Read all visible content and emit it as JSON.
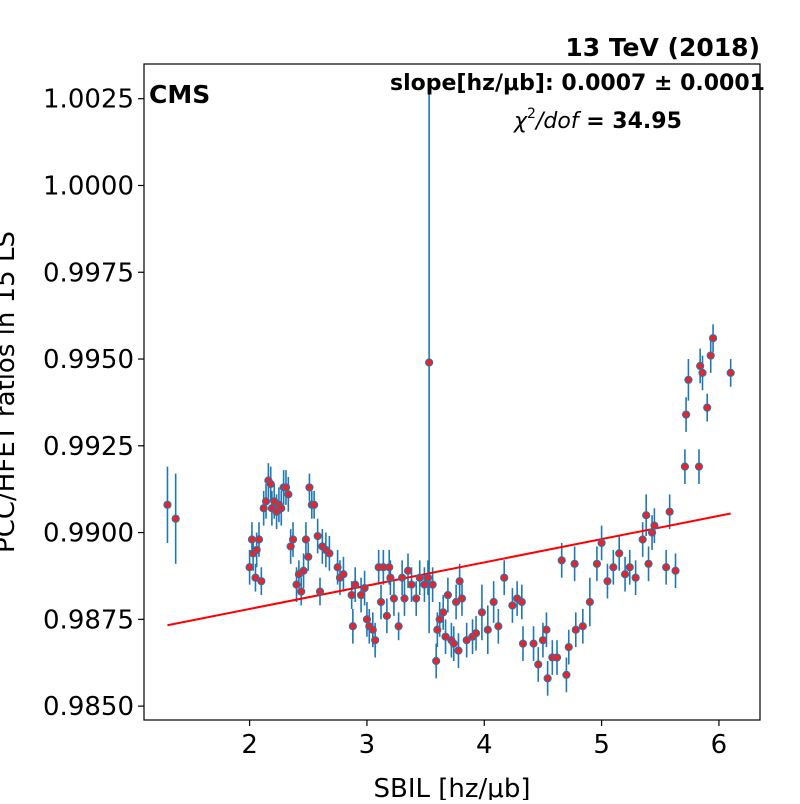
{
  "chart_data": {
    "type": "scatter",
    "title": "13 TeV (2018)",
    "experiment_label": "CMS",
    "xlabel": "SBIL [hz/μb]",
    "ylabel": "PCC/HFET ratios in 15 LS",
    "xlim": [
      1.1,
      6.35
    ],
    "ylim": [
      0.9846,
      1.0035
    ],
    "x_ticks": [
      2,
      3,
      4,
      5,
      6
    ],
    "y_ticks": [
      0.985,
      0.9875,
      0.99,
      0.9925,
      0.995,
      0.9975,
      1.0,
      1.0025
    ],
    "x_tick_labels": [
      "2",
      "3",
      "4",
      "5",
      "6"
    ],
    "y_tick_labels": [
      "0.9850",
      "0.9875",
      "0.9900",
      "0.9925",
      "0.9950",
      "0.9975",
      "1.0000",
      "1.0025"
    ],
    "annotations": {
      "slope_label": "slope[hz/μb]: 0.0007 ± 0.0001",
      "chi2_symbol": "χ",
      "chi2_exponent": "2",
      "chi2_dof": "/dof",
      "chi2_value": " = 34.95"
    },
    "fit_line": {
      "x": [
        1.3,
        6.1
      ],
      "y": [
        0.98733,
        0.99055
      ],
      "color": "#ff0000"
    },
    "colors": {
      "marker_fill": "#e8242a",
      "marker_edge": "#1f77b4",
      "error_bar": "#1f77b4",
      "axis": "#000000"
    },
    "series": [
      {
        "points": [
          [
            1.3,
            0.9908,
            0.0011
          ],
          [
            1.37,
            0.9904,
            0.0013
          ],
          [
            2.0,
            0.989,
            0.0005
          ],
          [
            2.02,
            0.9898,
            0.0005
          ],
          [
            2.03,
            0.9894,
            0.0005
          ],
          [
            2.05,
            0.9887,
            0.0004
          ],
          [
            2.06,
            0.9895,
            0.0005
          ],
          [
            2.08,
            0.9898,
            0.0005
          ],
          [
            2.1,
            0.9886,
            0.0004
          ],
          [
            2.12,
            0.9907,
            0.0005
          ],
          [
            2.14,
            0.9909,
            0.0005
          ],
          [
            2.16,
            0.9915,
            0.0005
          ],
          [
            2.18,
            0.9914,
            0.0005
          ],
          [
            2.19,
            0.9907,
            0.0005
          ],
          [
            2.21,
            0.9909,
            0.0005
          ],
          [
            2.23,
            0.9906,
            0.0005
          ],
          [
            2.25,
            0.9908,
            0.0005
          ],
          [
            2.27,
            0.9907,
            0.0005
          ],
          [
            2.29,
            0.9913,
            0.0005
          ],
          [
            2.31,
            0.9913,
            0.0005
          ],
          [
            2.33,
            0.9911,
            0.0005
          ],
          [
            2.35,
            0.9896,
            0.0005
          ],
          [
            2.37,
            0.9898,
            0.0005
          ],
          [
            2.4,
            0.9885,
            0.0005
          ],
          [
            2.42,
            0.9888,
            0.0004
          ],
          [
            2.44,
            0.9883,
            0.0004
          ],
          [
            2.46,
            0.9889,
            0.0005
          ],
          [
            2.48,
            0.9898,
            0.0005
          ],
          [
            2.5,
            0.9893,
            0.0004
          ],
          [
            2.51,
            0.9913,
            0.0004
          ],
          [
            2.53,
            0.9908,
            0.0004
          ],
          [
            2.55,
            0.9908,
            0.0004
          ],
          [
            2.58,
            0.9899,
            0.0005
          ],
          [
            2.6,
            0.9883,
            0.0004
          ],
          [
            2.62,
            0.9896,
            0.0005
          ],
          [
            2.65,
            0.9895,
            0.0005
          ],
          [
            2.68,
            0.9894,
            0.0005
          ],
          [
            2.75,
            0.989,
            0.0005
          ],
          [
            2.77,
            0.9887,
            0.0005
          ],
          [
            2.8,
            0.9888,
            0.0005
          ],
          [
            2.87,
            0.9882,
            0.0004
          ],
          [
            2.88,
            0.9873,
            0.0005
          ],
          [
            2.9,
            0.9885,
            0.0005
          ],
          [
            2.95,
            0.9882,
            0.0005
          ],
          [
            2.98,
            0.9884,
            0.0005
          ],
          [
            3.0,
            0.9875,
            0.0005
          ],
          [
            3.02,
            0.9873,
            0.0005
          ],
          [
            3.05,
            0.9872,
            0.0005
          ],
          [
            3.07,
            0.9869,
            0.0005
          ],
          [
            3.1,
            0.989,
            0.0005
          ],
          [
            3.12,
            0.988,
            0.0005
          ],
          [
            3.14,
            0.989,
            0.0005
          ],
          [
            3.17,
            0.9876,
            0.0005
          ],
          [
            3.19,
            0.989,
            0.0005
          ],
          [
            3.2,
            0.9887,
            0.0005
          ],
          [
            3.23,
            0.9881,
            0.0005
          ],
          [
            3.27,
            0.9873,
            0.0004
          ],
          [
            3.3,
            0.9887,
            0.0005
          ],
          [
            3.32,
            0.9881,
            0.0005
          ],
          [
            3.35,
            0.9889,
            0.0005
          ],
          [
            3.38,
            0.9885,
            0.0005
          ],
          [
            3.42,
            0.9881,
            0.0005
          ],
          [
            3.45,
            0.9887,
            0.0005
          ],
          [
            3.49,
            0.9885,
            0.0005
          ],
          [
            3.52,
            0.9887,
            0.0005
          ],
          [
            3.53,
            0.9949,
            0.0078
          ],
          [
            3.56,
            0.9885,
            0.0005
          ],
          [
            3.59,
            0.9863,
            0.0005
          ],
          [
            3.6,
            0.9872,
            0.0005
          ],
          [
            3.62,
            0.9875,
            0.0005
          ],
          [
            3.65,
            0.9877,
            0.0005
          ],
          [
            3.67,
            0.987,
            0.0005
          ],
          [
            3.69,
            0.9882,
            0.0005
          ],
          [
            3.72,
            0.9869,
            0.0005
          ],
          [
            3.74,
            0.9868,
            0.0005
          ],
          [
            3.76,
            0.988,
            0.0005
          ],
          [
            3.78,
            0.9866,
            0.0005
          ],
          [
            3.79,
            0.9886,
            0.0005
          ],
          [
            3.81,
            0.9881,
            0.0005
          ],
          [
            3.85,
            0.9869,
            0.0005
          ],
          [
            3.9,
            0.987,
            0.0005
          ],
          [
            3.93,
            0.9871,
            0.0005
          ],
          [
            3.98,
            0.9877,
            0.0008
          ],
          [
            4.03,
            0.9872,
            0.0007
          ],
          [
            4.08,
            0.988,
            0.0006
          ],
          [
            4.12,
            0.9873,
            0.0005
          ],
          [
            4.17,
            0.9887,
            0.0005
          ],
          [
            4.24,
            0.9879,
            0.0005
          ],
          [
            4.28,
            0.9881,
            0.0005
          ],
          [
            4.32,
            0.988,
            0.0005
          ],
          [
            4.33,
            0.9868,
            0.0005
          ],
          [
            4.42,
            0.9868,
            0.0005
          ],
          [
            4.46,
            0.9862,
            0.0005
          ],
          [
            4.5,
            0.9869,
            0.0005
          ],
          [
            4.53,
            0.9872,
            0.0005
          ],
          [
            4.54,
            0.9858,
            0.0005
          ],
          [
            4.58,
            0.9864,
            0.0005
          ],
          [
            4.62,
            0.9864,
            0.0005
          ],
          [
            4.66,
            0.9892,
            0.0005
          ],
          [
            4.7,
            0.9859,
            0.0005
          ],
          [
            4.72,
            0.9867,
            0.0005
          ],
          [
            4.77,
            0.9891,
            0.0005
          ],
          [
            4.78,
            0.9872,
            0.0005
          ],
          [
            4.84,
            0.9873,
            0.0005
          ],
          [
            4.9,
            0.988,
            0.0007
          ],
          [
            4.96,
            0.9891,
            0.0005
          ],
          [
            5.0,
            0.9897,
            0.0005
          ],
          [
            5.05,
            0.9886,
            0.0005
          ],
          [
            5.1,
            0.989,
            0.0005
          ],
          [
            5.15,
            0.9894,
            0.0005
          ],
          [
            5.2,
            0.9888,
            0.0005
          ],
          [
            5.24,
            0.989,
            0.0005
          ],
          [
            5.29,
            0.9887,
            0.0005
          ],
          [
            5.35,
            0.9898,
            0.0005
          ],
          [
            5.38,
            0.9905,
            0.0006
          ],
          [
            5.4,
            0.9891,
            0.0005
          ],
          [
            5.43,
            0.99,
            0.0005
          ],
          [
            5.45,
            0.9902,
            0.0005
          ],
          [
            5.55,
            0.989,
            0.0005
          ],
          [
            5.58,
            0.9906,
            0.0005
          ],
          [
            5.63,
            0.9889,
            0.0005
          ],
          [
            5.71,
            0.9919,
            0.0005
          ],
          [
            5.72,
            0.9934,
            0.0005
          ],
          [
            5.74,
            0.9944,
            0.0006
          ],
          [
            5.83,
            0.9919,
            0.0005
          ],
          [
            5.84,
            0.9948,
            0.0005
          ],
          [
            5.86,
            0.9946,
            0.0005
          ],
          [
            5.9,
            0.9936,
            0.0004
          ],
          [
            5.93,
            0.9951,
            0.0005
          ],
          [
            5.95,
            0.9956,
            0.0004
          ],
          [
            6.1,
            0.9946,
            0.0004
          ]
        ]
      }
    ]
  }
}
